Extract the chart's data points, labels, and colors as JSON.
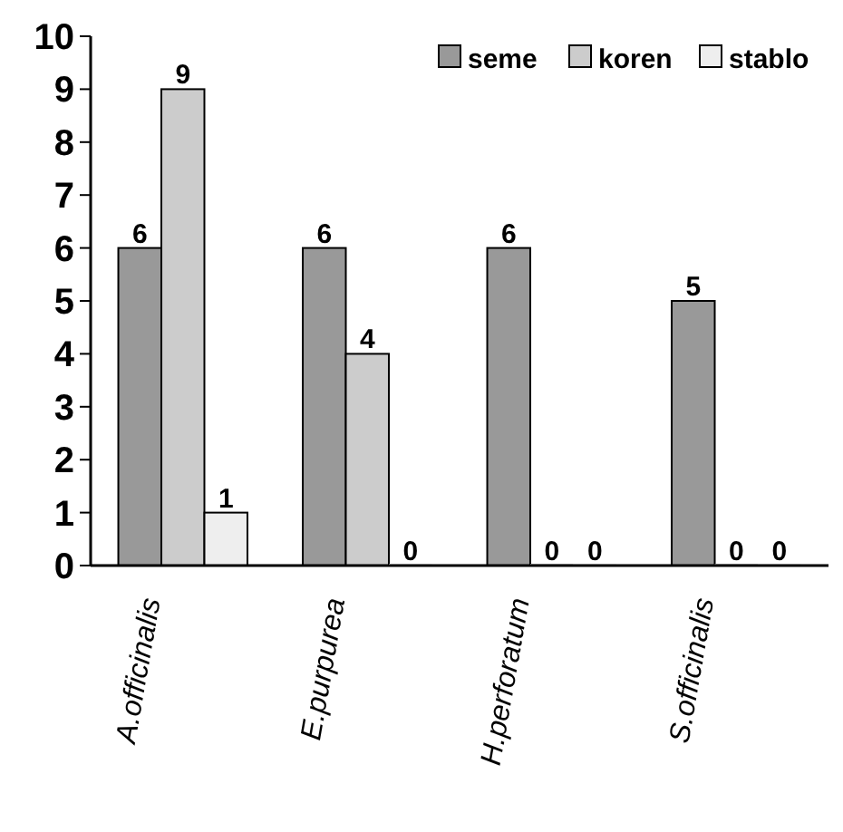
{
  "chart_data": {
    "type": "bar",
    "categories": [
      "A.officinalis",
      "E.purpurea",
      "H.perforatum",
      "S.officinalis"
    ],
    "series": [
      {
        "name": "seme",
        "color": "#999999",
        "values": [
          6,
          6,
          6,
          5
        ]
      },
      {
        "name": "koren",
        "color": "#cccccc",
        "values": [
          9,
          4,
          0,
          0
        ]
      },
      {
        "name": "stablo",
        "color": "#eeeeee",
        "values": [
          1,
          0,
          0,
          0
        ]
      }
    ],
    "ylim": [
      0,
      10
    ],
    "yticks": [
      0,
      1,
      2,
      3,
      4,
      5,
      6,
      7,
      8,
      9,
      10
    ],
    "data_labels": true,
    "legend": "top right",
    "grid": false
  }
}
